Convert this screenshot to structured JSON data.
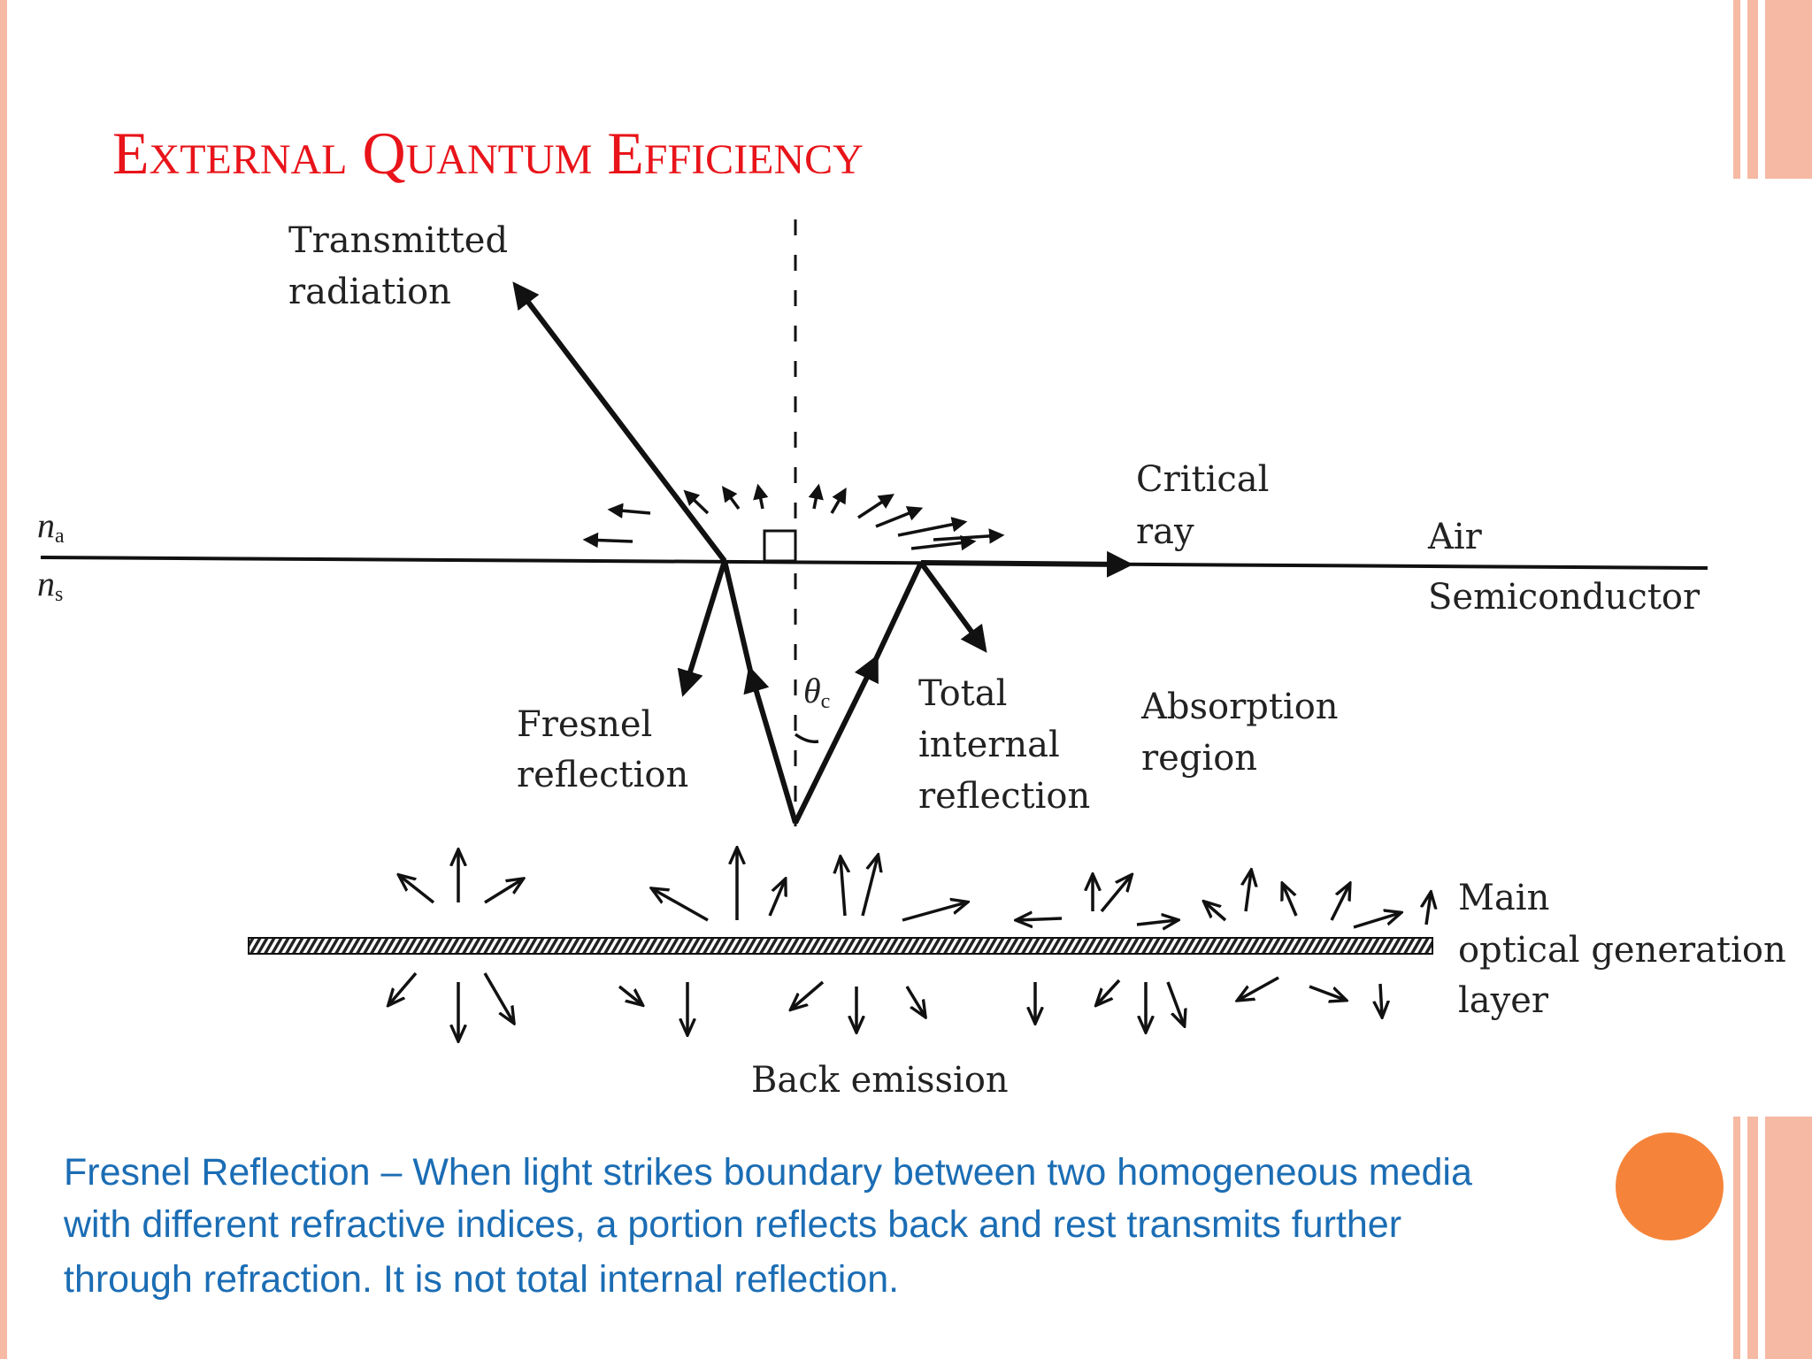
{
  "header": {
    "title": "External Quantum Efficiency"
  },
  "diagram": {
    "transmitted": [
      "Transmitted",
      "radiation"
    ],
    "critical": [
      "Critical",
      "ray"
    ],
    "air": "Air",
    "semiconductor": "Semiconductor",
    "fresnel": [
      "Fresnel",
      "reflection"
    ],
    "total": [
      "Total",
      "internal",
      "reflection"
    ],
    "absorption": [
      "Absorption",
      "region"
    ],
    "layer": [
      "Main",
      "optical generation",
      "layer"
    ],
    "back": "Back emission",
    "na": {
      "symbol": "n",
      "sub": "a"
    },
    "ns": {
      "symbol": "n",
      "sub": "s"
    },
    "theta": {
      "symbol": "θ",
      "sub": "c"
    }
  },
  "body": [
    "Fresnel Reflection – When light strikes boundary between two homogeneous media",
    "with different refractive indices, a portion reflects back and rest transmits further",
    "through refraction. It is not total internal reflection."
  ]
}
